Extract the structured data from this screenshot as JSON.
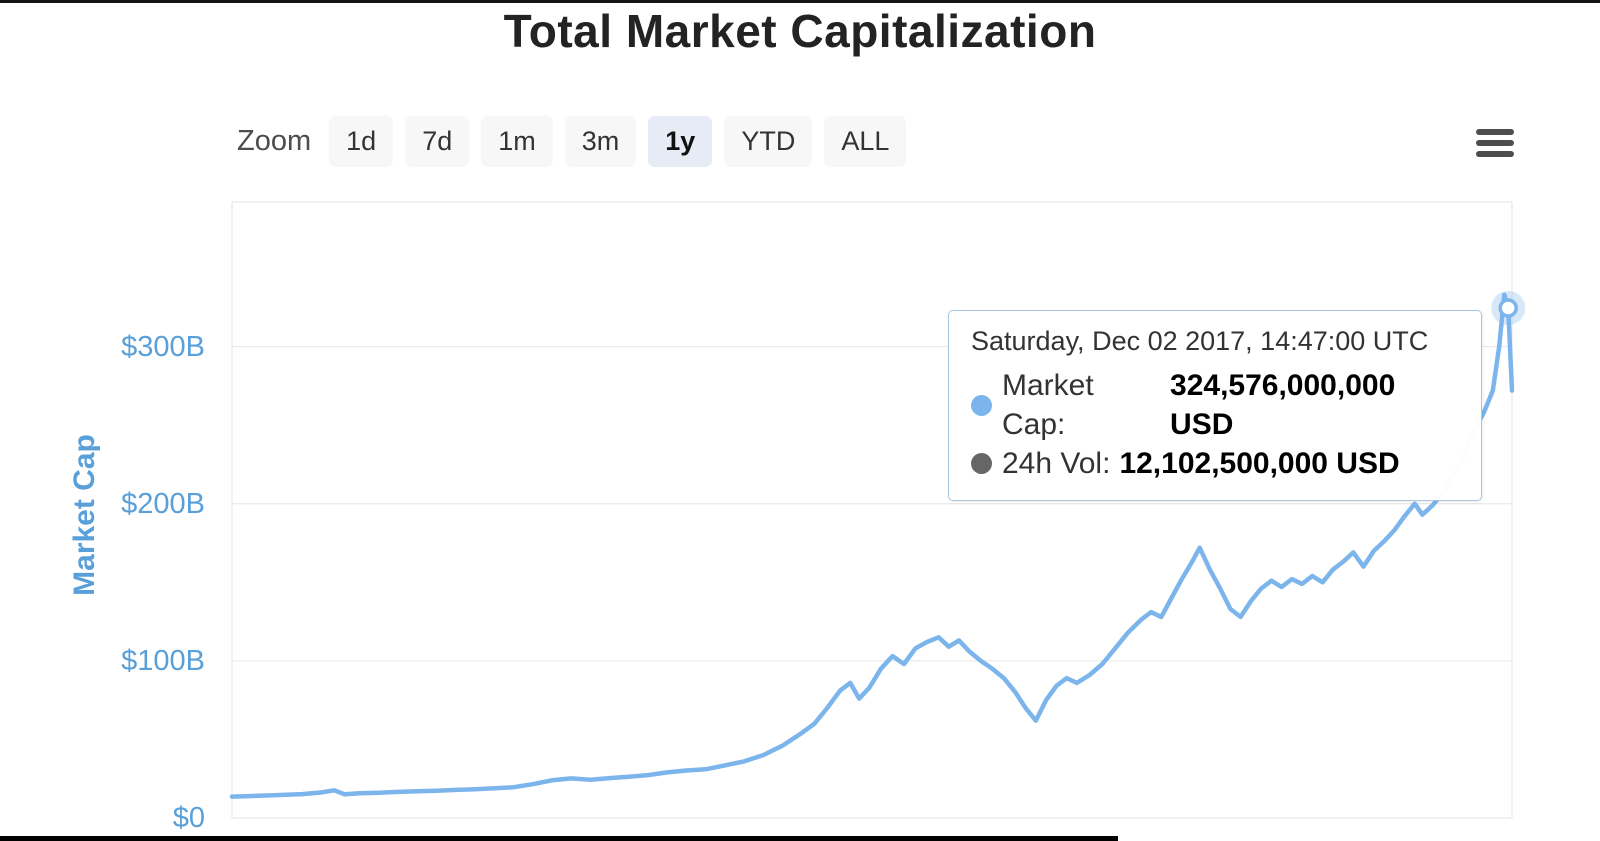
{
  "toolbar": {
    "zoom_label": "Zoom",
    "buttons": [
      {
        "label": "1d",
        "selected": false
      },
      {
        "label": "7d",
        "selected": false
      },
      {
        "label": "1m",
        "selected": false
      },
      {
        "label": "3m",
        "selected": false
      },
      {
        "label": "1y",
        "selected": true
      },
      {
        "label": "YTD",
        "selected": false
      },
      {
        "label": "ALL",
        "selected": false
      }
    ]
  },
  "colors": {
    "line": "#7cb5ec",
    "axis_text": "#59a0da",
    "grid": "#e6e6e6",
    "plot_border": "#e3e3e3",
    "button_bg": "#f7f7f7",
    "selected_button_bg": "#e6ebf5",
    "tooltip_dot_volume": "#666666"
  },
  "tooltip": {
    "header": "Saturday, Dec 02 2017, 14:47:00 UTC",
    "rows": [
      {
        "dot_color": "#7cb5ec",
        "label": "Market Cap:",
        "value": "324,576,000,000 USD"
      },
      {
        "dot_color": "#666666",
        "label": "24h Vol:",
        "value": "12,102,500,000 USD"
      }
    ]
  },
  "chart_data": {
    "type": "line",
    "title": "Total Market Capitalization",
    "legend": false,
    "grid": true,
    "yaxis": {
      "title": "Market Cap",
      "ylim": [
        0,
        392
      ],
      "ticks": [
        {
          "label": "$300B",
          "value": 300
        },
        {
          "label": "$200B",
          "value": 200
        },
        {
          "label": "$100B",
          "value": 100
        },
        {
          "label": "$0",
          "value": 0
        }
      ],
      "unit": "billion USD"
    },
    "xaxis": {
      "visible_range_selected": "1y",
      "note": "x given as fraction 0-1 of the visible one-year span ending Dec 02 2017"
    },
    "series": [
      {
        "name": "Market Cap",
        "color": "#7cb5ec",
        "points": [
          [
            0.0,
            13.6
          ],
          [
            0.01,
            13.9
          ],
          [
            0.02,
            14.1
          ],
          [
            0.03,
            14.4
          ],
          [
            0.04,
            14.7
          ],
          [
            0.055,
            15.2
          ],
          [
            0.07,
            16.3
          ],
          [
            0.08,
            17.6
          ],
          [
            0.088,
            15.1
          ],
          [
            0.1,
            15.7
          ],
          [
            0.115,
            16.1
          ],
          [
            0.13,
            16.6
          ],
          [
            0.145,
            17.0
          ],
          [
            0.16,
            17.4
          ],
          [
            0.175,
            17.9
          ],
          [
            0.19,
            18.3
          ],
          [
            0.205,
            18.9
          ],
          [
            0.22,
            19.6
          ],
          [
            0.235,
            21.5
          ],
          [
            0.25,
            24.0
          ],
          [
            0.265,
            25.2
          ],
          [
            0.28,
            24.3
          ],
          [
            0.295,
            25.4
          ],
          [
            0.31,
            26.2
          ],
          [
            0.325,
            27.3
          ],
          [
            0.34,
            29.0
          ],
          [
            0.355,
            30.2
          ],
          [
            0.37,
            31.0
          ],
          [
            0.385,
            33.5
          ],
          [
            0.4,
            36.0
          ],
          [
            0.415,
            40.0
          ],
          [
            0.43,
            46.0
          ],
          [
            0.445,
            54.0
          ],
          [
            0.455,
            60.0
          ],
          [
            0.465,
            70.0
          ],
          [
            0.475,
            81.0
          ],
          [
            0.483,
            86.0
          ],
          [
            0.49,
            76.0
          ],
          [
            0.498,
            83.0
          ],
          [
            0.507,
            95.0
          ],
          [
            0.516,
            103.0
          ],
          [
            0.525,
            98.0
          ],
          [
            0.534,
            108.0
          ],
          [
            0.543,
            112.0
          ],
          [
            0.552,
            115.0
          ],
          [
            0.56,
            109.0
          ],
          [
            0.568,
            113.0
          ],
          [
            0.576,
            106.0
          ],
          [
            0.585,
            100.0
          ],
          [
            0.594,
            95.0
          ],
          [
            0.603,
            89.0
          ],
          [
            0.612,
            80.0
          ],
          [
            0.62,
            70.0
          ],
          [
            0.628,
            62.0
          ],
          [
            0.636,
            75.0
          ],
          [
            0.644,
            84.0
          ],
          [
            0.652,
            89.0
          ],
          [
            0.66,
            86.0
          ],
          [
            0.67,
            91.0
          ],
          [
            0.68,
            98.0
          ],
          [
            0.69,
            108.0
          ],
          [
            0.7,
            118.0
          ],
          [
            0.71,
            126.0
          ],
          [
            0.718,
            131.0
          ],
          [
            0.726,
            128.0
          ],
          [
            0.734,
            140.0
          ],
          [
            0.742,
            152.0
          ],
          [
            0.75,
            163.0
          ],
          [
            0.756,
            172.0
          ],
          [
            0.764,
            158.0
          ],
          [
            0.772,
            146.0
          ],
          [
            0.78,
            133.0
          ],
          [
            0.788,
            128.0
          ],
          [
            0.796,
            138.0
          ],
          [
            0.804,
            146.0
          ],
          [
            0.812,
            151.0
          ],
          [
            0.82,
            147.0
          ],
          [
            0.828,
            152.0
          ],
          [
            0.836,
            149.0
          ],
          [
            0.844,
            154.0
          ],
          [
            0.852,
            150.0
          ],
          [
            0.86,
            158.0
          ],
          [
            0.868,
            163.0
          ],
          [
            0.876,
            169.0
          ],
          [
            0.884,
            160.0
          ],
          [
            0.892,
            170.0
          ],
          [
            0.9,
            176.0
          ],
          [
            0.908,
            183.0
          ],
          [
            0.916,
            192.0
          ],
          [
            0.924,
            200.0
          ],
          [
            0.93,
            193.0
          ],
          [
            0.938,
            199.0
          ],
          [
            0.946,
            207.0
          ],
          [
            0.954,
            218.0
          ],
          [
            0.962,
            230.0
          ],
          [
            0.97,
            246.0
          ],
          [
            0.978,
            258.0
          ],
          [
            0.985,
            272.0
          ],
          [
            0.99,
            300.0
          ],
          [
            0.994,
            333.0
          ],
          [
            0.997,
            324.576
          ],
          [
            1.0,
            272.0
          ]
        ]
      }
    ],
    "marker_point": {
      "x": 0.997,
      "value": 324.576
    }
  }
}
